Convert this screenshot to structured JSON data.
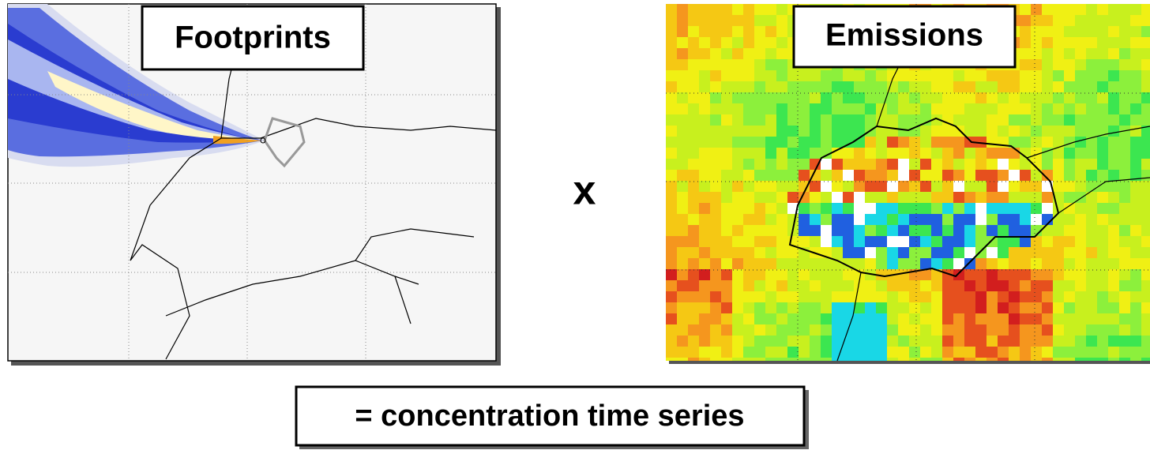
{
  "footprints_panel": {
    "label": "Footprints"
  },
  "emissions_panel": {
    "label": "Emissions"
  },
  "operator": "x",
  "result": {
    "label": "= concentration time series"
  }
}
